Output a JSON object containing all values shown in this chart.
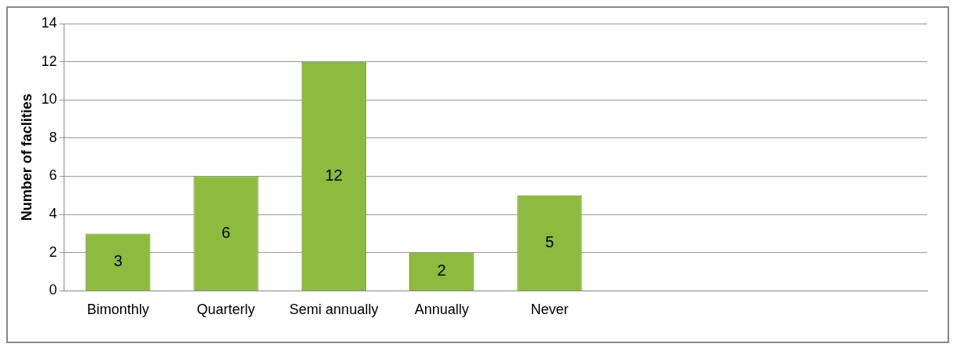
{
  "chart_data": {
    "type": "bar",
    "ylabel": "Number of faclities",
    "categories": [
      "Bimonthly",
      "Quarterly",
      "Semi annually",
      "Annually",
      "Never",
      null,
      null,
      null
    ],
    "values": [
      3,
      6,
      12,
      2,
      5,
      null,
      null,
      null
    ],
    "color": "#8dbb3f",
    "ylim": [
      0,
      14
    ],
    "yticks": [
      0,
      2,
      4,
      6,
      8,
      10,
      12,
      14
    ],
    "grid": "y",
    "data_labels": true
  }
}
